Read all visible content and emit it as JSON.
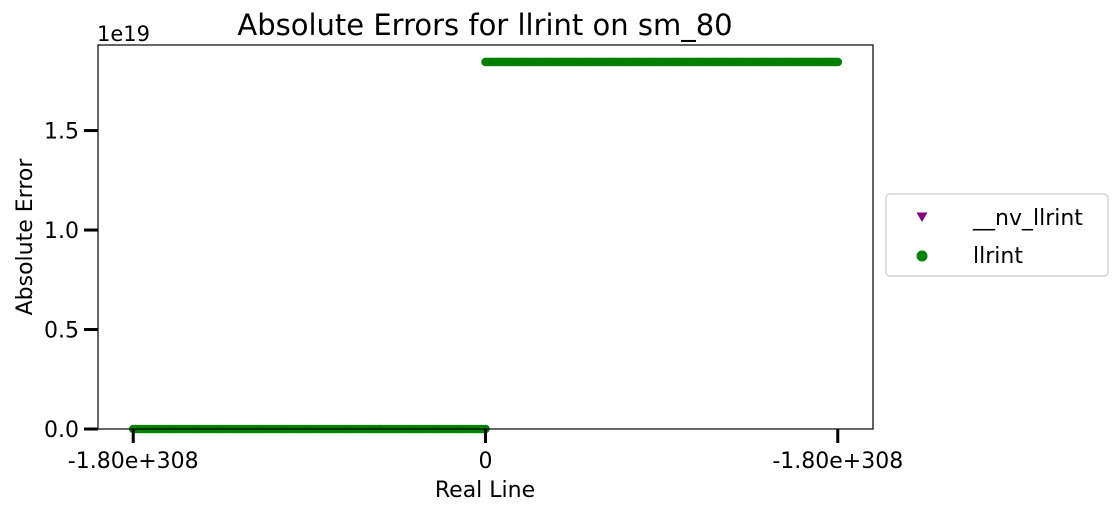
{
  "chart_data": {
    "type": "scatter",
    "title": "Absolute Errors for llrint on sm_80",
    "xlabel": "Real Line",
    "ylabel": "Absolute Error",
    "y_offset_label": "1e19",
    "xlim": [
      -1.1,
      1.1
    ],
    "ylim": [
      0,
      1.93e+19
    ],
    "x_ticks": [
      {
        "value": -1,
        "label": "-1.80e+308"
      },
      {
        "value": 0,
        "label": "0"
      },
      {
        "value": 1,
        "label": "-1.80e+308"
      }
    ],
    "y_ticks": [
      {
        "value": 0,
        "label": "0.0"
      },
      {
        "value": 5e+18,
        "label": "0.5"
      },
      {
        "value": 1e+19,
        "label": "1.0"
      },
      {
        "value": 1.5e+19,
        "label": "1.5"
      }
    ],
    "grid": false,
    "legend_position": "center-right outside",
    "series": [
      {
        "name": "__nv_llrint",
        "marker": "triangle-down",
        "color": "#800080",
        "points": []
      },
      {
        "name": "llrint",
        "marker": "circle",
        "color": "#008000",
        "segments": [
          {
            "x_start": -1.0,
            "x_end": 0.0,
            "y": 0
          },
          {
            "x_start": 0.0,
            "x_end": 1.0,
            "y": 1.8446744e+19
          }
        ]
      }
    ]
  }
}
